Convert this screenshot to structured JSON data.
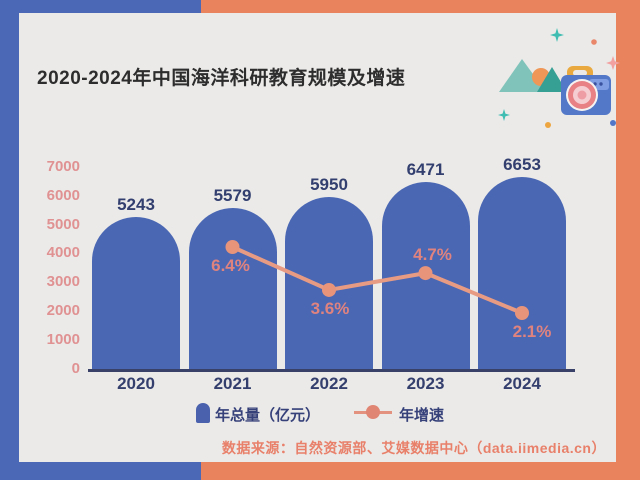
{
  "title": "2020-2024年中国海洋科研教育规模及增速",
  "source": "数据来源：自然资源部、艾媒数据中心（data.iimedia.cn）",
  "frame": {
    "blue": "#4a68b5",
    "salmon": "#e8835e",
    "card_bg": "#ebeae8"
  },
  "chart_data": {
    "type": "bar",
    "categories": [
      "2020",
      "2021",
      "2022",
      "2023",
      "2024"
    ],
    "series": [
      {
        "name": "年总量（亿元）",
        "type": "bar",
        "values": [
          5243,
          5579,
          5950,
          6471,
          6653
        ],
        "color": "#4a67b4",
        "label_color": "#323f6f"
      },
      {
        "name": "年增速",
        "type": "line",
        "values": [
          null,
          6.4,
          3.6,
          4.7,
          2.1
        ],
        "unit": "%",
        "color": "#e89b83",
        "marker_color": "#e8947b",
        "label_color": "#e0837f"
      }
    ],
    "title": "2020-2024年中国海洋科研教育规模及增速",
    "xlabel": "",
    "ylabel": "",
    "ylim": [
      0,
      7000
    ],
    "yticks": [
      0,
      1000,
      2000,
      3000,
      4000,
      5000,
      6000,
      7000
    ],
    "ytick_color": "#e09192",
    "grid": false,
    "legend_position": "bottom",
    "bar_shape": "rounded-dome-top"
  },
  "decor": {
    "mountain_light": "#80c3ba",
    "mountain_dark": "#36a095",
    "sun": "#ef9757",
    "camera_body": "#5378c8",
    "camera_panel": "#7e9de2",
    "camera_handle": "#e9a93f",
    "lens_outer": "#e88184",
    "lens_mid": "#f5ced2",
    "lens_center": "#ef9da4",
    "sparkle_teal": "#3fbdb2",
    "sparkle_pink": "#f2a0a0",
    "dot_salmon": "#e8876a",
    "dot_orange": "#eda53f",
    "dot_blue": "#5377c8"
  }
}
